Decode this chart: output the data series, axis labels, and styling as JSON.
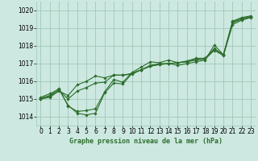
{
  "title": "Graphe pression niveau de la mer (hPa)",
  "background_color": "#cce8e0",
  "grid_color": "#a0c8b8",
  "line_color": "#2d6e2d",
  "xlim": [
    -0.5,
    23.5
  ],
  "ylim": [
    1013.5,
    1020.5
  ],
  "xticks": [
    0,
    1,
    2,
    3,
    4,
    5,
    6,
    7,
    8,
    9,
    10,
    11,
    12,
    13,
    14,
    15,
    16,
    17,
    18,
    19,
    20,
    21,
    22,
    23
  ],
  "yticks": [
    1014,
    1015,
    1016,
    1017,
    1018,
    1019,
    1020
  ],
  "series": [
    [
      1015.1,
      1015.3,
      1015.55,
      1014.65,
      1014.2,
      1014.1,
      1014.2,
      1015.35,
      1015.9,
      1015.85,
      1016.45,
      1016.65,
      1016.9,
      1017.0,
      1017.0,
      1016.9,
      1017.0,
      1017.1,
      1017.2,
      1018.05,
      1017.5,
      1019.4,
      1019.6,
      1019.7
    ],
    [
      1015.0,
      1015.15,
      1015.5,
      1015.0,
      1015.45,
      1015.65,
      1015.9,
      1015.95,
      1016.35,
      1016.35,
      1016.45,
      1016.65,
      1016.85,
      1016.95,
      1017.0,
      1017.05,
      1017.1,
      1017.25,
      1017.3,
      1017.85,
      1017.5,
      1019.3,
      1019.5,
      1019.65
    ],
    [
      1015.0,
      1015.1,
      1015.45,
      1015.2,
      1015.8,
      1016.0,
      1016.3,
      1016.2,
      1016.35,
      1016.35,
      1016.4,
      1016.65,
      1016.85,
      1016.95,
      1017.0,
      1017.05,
      1017.1,
      1017.2,
      1017.25,
      1017.75,
      1017.45,
      1019.2,
      1019.45,
      1019.6
    ],
    [
      1015.05,
      1015.2,
      1015.6,
      1014.6,
      1014.3,
      1014.35,
      1014.45,
      1015.4,
      1016.1,
      1015.95,
      1016.5,
      1016.8,
      1017.1,
      1017.05,
      1017.2,
      1017.05,
      1017.15,
      1017.3,
      1017.3,
      1017.8,
      1017.5,
      1019.35,
      1019.55,
      1019.65
    ]
  ]
}
